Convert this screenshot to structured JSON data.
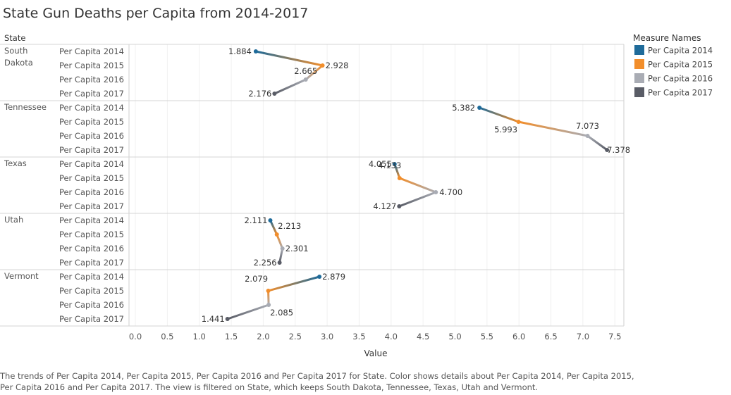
{
  "title": "State Gun Deaths per Capita from 2014-2017",
  "caption": "The trends of Per Capita 2014, Per Capita 2015, Per Capita 2016 and Per Capita 2017 for State.  Color shows details about Per Capita 2014, Per Capita 2015, Per Capita 2016 and Per Capita 2017. The view is filtered on State, which keeps South Dakota, Tennessee, Texas, Utah and Vermont.",
  "legend_title": "Measure Names",
  "state_header": "State",
  "colors": {
    "Per Capita 2014": "#1f6b9a",
    "Per Capita 2015": "#f28e2b",
    "Per Capita 2016": "#a9acb4",
    "Per Capita 2017": "#595c66"
  },
  "chart_data": {
    "type": "line",
    "title": "State Gun Deaths per Capita from 2014-2017",
    "xlabel": "Value",
    "ylabel": "State",
    "xlim": [
      0,
      7.7
    ],
    "xticks": [
      "0.0",
      "0.5",
      "1.0",
      "1.5",
      "2.0",
      "2.5",
      "3.0",
      "3.5",
      "4.0",
      "4.5",
      "5.0",
      "5.5",
      "6.0",
      "6.5",
      "7.0",
      "7.5"
    ],
    "measures": [
      "Per Capita 2014",
      "Per Capita 2015",
      "Per Capita 2016",
      "Per Capita 2017"
    ],
    "legend_position": "top-right",
    "grid": true,
    "states": [
      {
        "name": "South Dakota",
        "name_lines": [
          "South",
          "Dakota"
        ],
        "values": [
          1.884,
          2.928,
          2.665,
          2.176
        ],
        "labels": [
          "1.884",
          "2.928",
          "2.665",
          "2.176"
        ]
      },
      {
        "name": "Tennessee",
        "name_lines": [
          "Tennessee"
        ],
        "values": [
          5.382,
          5.993,
          7.073,
          7.378
        ],
        "labels": [
          "5.382",
          "5.993",
          "7.073",
          "7.378"
        ]
      },
      {
        "name": "Texas",
        "name_lines": [
          "Texas"
        ],
        "values": [
          4.055,
          4.133,
          4.7,
          4.127
        ],
        "labels": [
          "4.055",
          "4.133",
          "4.700",
          "4.127"
        ]
      },
      {
        "name": "Utah",
        "name_lines": [
          "Utah"
        ],
        "values": [
          2.111,
          2.213,
          2.301,
          2.256
        ],
        "labels": [
          "2.111",
          "2.213",
          "2.301",
          "2.256"
        ]
      },
      {
        "name": "Vermont",
        "name_lines": [
          "Vermont"
        ],
        "values": [
          2.879,
          2.079,
          2.085,
          1.441
        ],
        "labels": [
          "2.879",
          "2.079",
          "2.085",
          "1.441"
        ]
      }
    ]
  }
}
